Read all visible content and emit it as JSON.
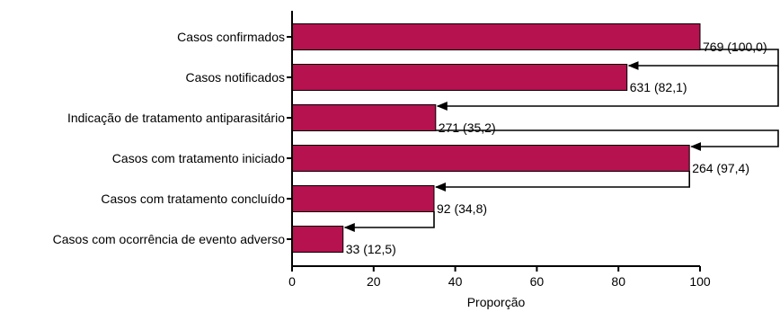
{
  "chart_data": {
    "type": "bar",
    "orientation": "horizontal",
    "categories": [
      "Casos confirmados",
      "Casos notificados",
      "Indicação de tratamento antiparasitário",
      "Casos com tratamento iniciado",
      "Casos com tratamento concluído",
      "Casos com ocorrência de evento adverso"
    ],
    "values": [
      100.0,
      82.1,
      35.2,
      97.4,
      34.8,
      12.5
    ],
    "data_labels": [
      "769 (100,0)",
      "631 (82,1)",
      "271 (35,2)",
      "264 (97,4)",
      "92 (34,8)",
      "33 (12,5)"
    ],
    "title": "",
    "xlabel": "Proporção",
    "ylabel": "",
    "xlim": [
      0,
      100
    ],
    "xticks": [
      "0",
      "20",
      "40",
      "60",
      "80",
      "100"
    ],
    "grid": false,
    "bar_color": "#b5124f",
    "flow_arrows": [
      {
        "from": 0,
        "to": 1
      },
      {
        "from": 0,
        "to": 2
      },
      {
        "from": 2,
        "to": 3
      },
      {
        "from": 3,
        "to": 4
      },
      {
        "from": 4,
        "to": 5
      }
    ]
  }
}
